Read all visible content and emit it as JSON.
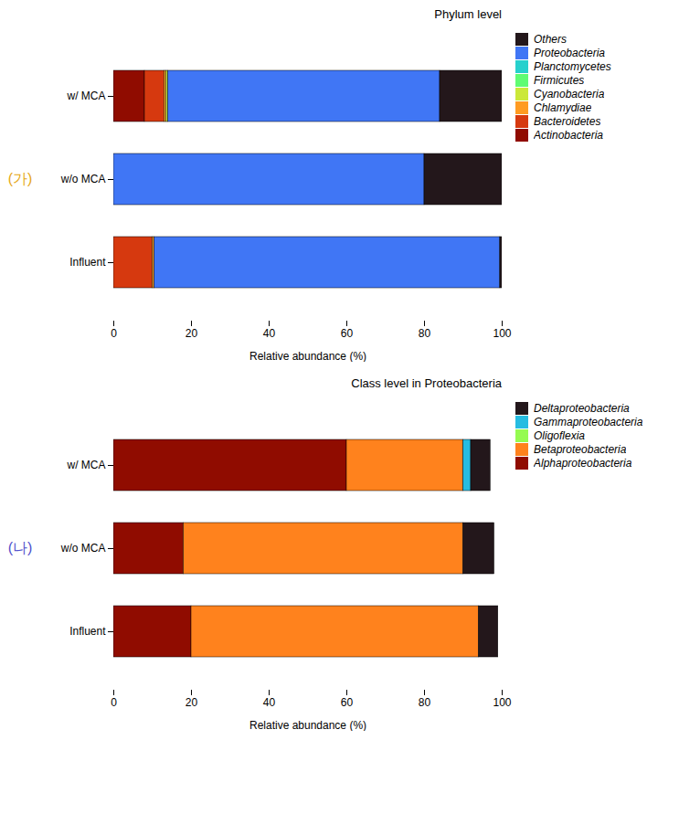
{
  "chart_data": [
    {
      "type": "bar",
      "orientation": "horizontal",
      "stacked": true,
      "title": "Phylum level",
      "xlabel": "Relative abundance (%)",
      "categories": [
        "w/ MCA",
        "w/o MCA",
        "Influent"
      ],
      "series": [
        {
          "name": "Actinobacteria",
          "values": [
            8.0,
            0.0,
            0.0
          ]
        },
        {
          "name": "Bacteroidetes",
          "values": [
            5.0,
            0.0,
            10.0
          ]
        },
        {
          "name": "Chlamydiae",
          "values": [
            0.5,
            0.0,
            0.5
          ]
        },
        {
          "name": "Cyanobacteria",
          "values": [
            0.5,
            0.0,
            0.0
          ]
        },
        {
          "name": "Firmicutes",
          "values": [
            0.0,
            0.0,
            0.0
          ]
        },
        {
          "name": "Planctomycetes",
          "values": [
            null,
            null,
            null
          ]
        },
        {
          "name": "Proteobacteria",
          "values": [
            70.0,
            80.0,
            89.0
          ]
        },
        {
          "name": "Others",
          "values": [
            16.0,
            20.0,
            0.5
          ]
        }
      ],
      "xlim": [
        0,
        100
      ],
      "xticks": [
        0,
        20,
        40,
        60,
        80,
        100
      ],
      "grid": false,
      "legend": "right",
      "annotations": [
        {
          "text": "(가)",
          "color": "#e6a817"
        }
      ]
    },
    {
      "type": "bar",
      "orientation": "horizontal",
      "stacked": true,
      "title": "Class level in Proteobacteria",
      "xlabel": "Relative abundance (%)",
      "categories": [
        "w/ MCA",
        "w/o MCA",
        "Influent"
      ],
      "series": [
        {
          "name": "Alphaproteobacteria",
          "values": [
            60.0,
            18.0,
            20.0
          ]
        },
        {
          "name": "Betaproteobacteria",
          "values": [
            30.0,
            72.0,
            74.0
          ]
        },
        {
          "name": "Oligoflexia",
          "values": [
            0.0,
            0.0,
            0.0
          ]
        },
        {
          "name": "Gammaproteobacteria",
          "values": [
            2.0,
            0.0,
            0.0
          ]
        },
        {
          "name": "Deltaproteobacteria",
          "values": [
            5.0,
            8.0,
            5.0
          ]
        }
      ],
      "xlim": [
        0,
        100
      ],
      "xticks": [
        0,
        20,
        40,
        60,
        80,
        100
      ],
      "grid": false,
      "legend": "right",
      "annotations": [
        {
          "text": "(나)",
          "color": "#5050cc"
        }
      ]
    }
  ]
}
